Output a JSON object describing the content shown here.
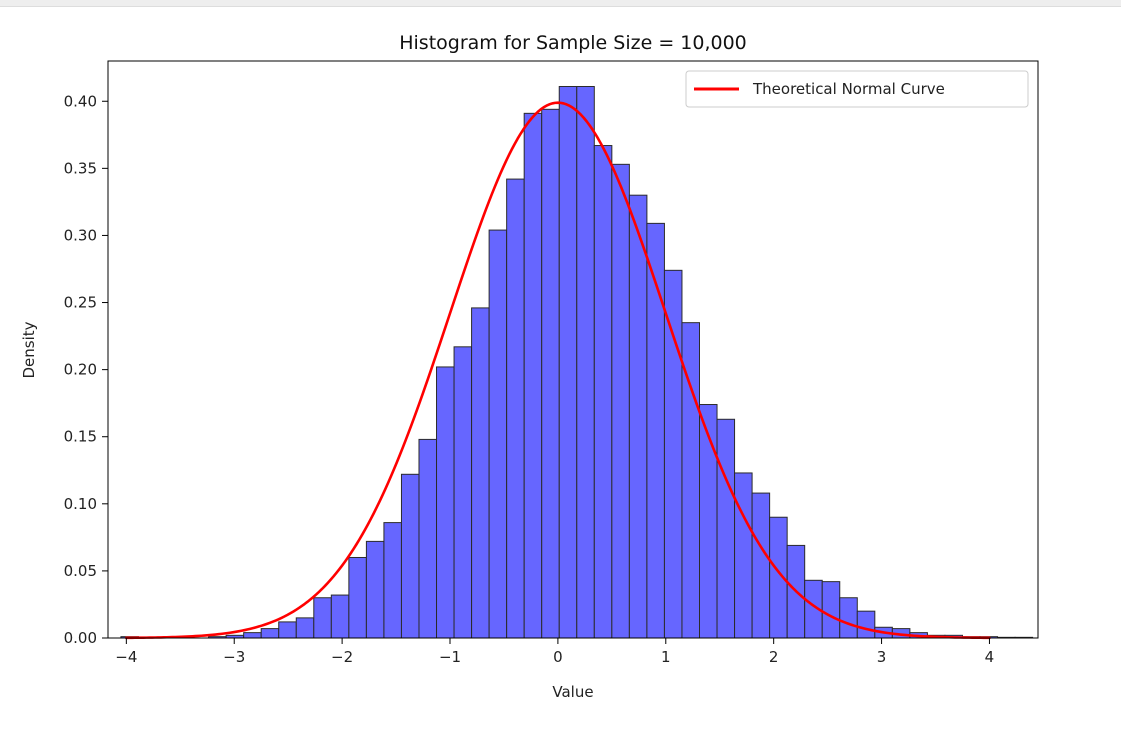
{
  "chart_data": {
    "type": "bar",
    "title": "Histogram for Sample Size = 10,000",
    "xlabel": "Value",
    "ylabel": "Density",
    "xlim": [
      -4.17,
      4.45
    ],
    "ylim": [
      0,
      0.43
    ],
    "x_ticks": [
      -4,
      -3,
      -2,
      -1,
      0,
      1,
      2,
      3,
      4
    ],
    "y_ticks": [
      0.0,
      0.05,
      0.1,
      0.15,
      0.2,
      0.25,
      0.3,
      0.35,
      0.4
    ],
    "x_tick_labels": [
      "−4",
      "−3",
      "−2",
      "−1",
      "0",
      "1",
      "2",
      "3",
      "4"
    ],
    "y_tick_labels": [
      "0.00",
      "0.05",
      "0.10",
      "0.15",
      "0.20",
      "0.25",
      "0.30",
      "0.35",
      "0.40"
    ],
    "grid": false,
    "legend_position": "top-right",
    "bins": {
      "start": -4.05,
      "width": 0.1625,
      "densities": [
        0.001,
        0,
        0,
        0,
        0,
        0.001,
        0.002,
        0.004,
        0.007,
        0.012,
        0.015,
        0.03,
        0.032,
        0.06,
        0.072,
        0.086,
        0.122,
        0.148,
        0.202,
        0.217,
        0.246,
        0.304,
        0.342,
        0.391,
        0.394,
        0.411,
        0.411,
        0.367,
        0.353,
        0.33,
        0.309,
        0.274,
        0.235,
        0.174,
        0.163,
        0.123,
        0.108,
        0.09,
        0.069,
        0.043,
        0.042,
        0.03,
        0.02,
        0.008,
        0.007,
        0.004,
        0.002,
        0.002,
        0.001,
        0.001,
        0.0005,
        0.0005
      ]
    },
    "curve": {
      "name": "Theoretical Normal Curve",
      "mean": 0,
      "std": 1,
      "x_range": [
        -4,
        4
      ]
    },
    "colors": {
      "bar_fill": "#6666ff",
      "bar_edge": "#2b2b2b",
      "curve": "#ff0000"
    }
  }
}
